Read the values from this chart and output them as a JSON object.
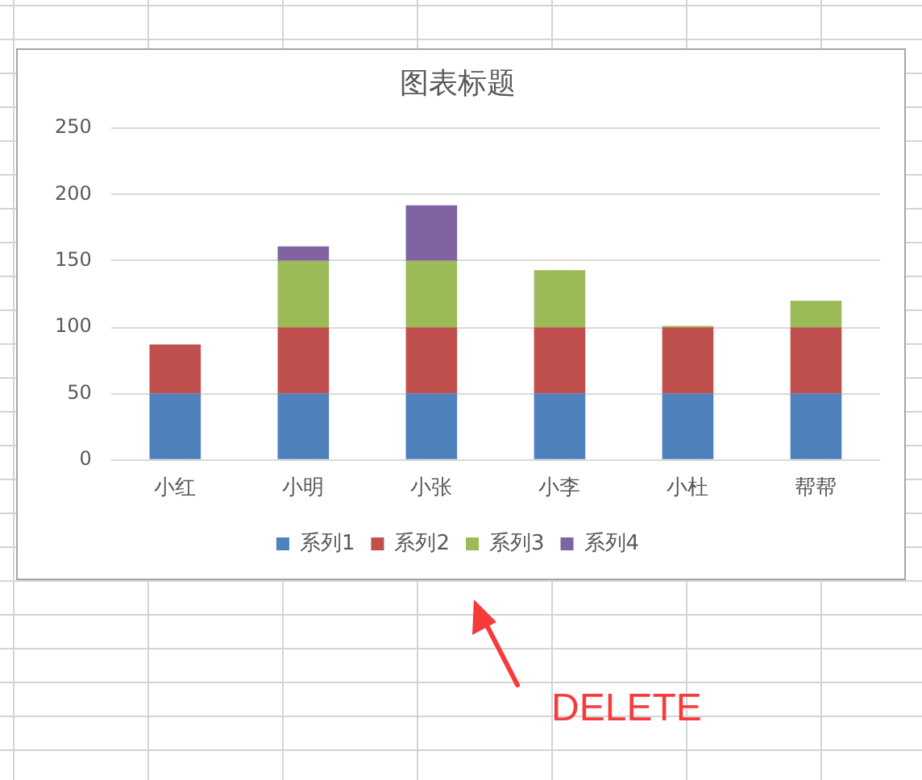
{
  "chart_data": {
    "type": "bar",
    "title": "图表标题",
    "categories": [
      "小红",
      "小明",
      "小张",
      "小李",
      "小杜",
      "帮帮"
    ],
    "stacked": true,
    "series": [
      {
        "name": "系列1",
        "color": "#4f81bd",
        "values": [
          50,
          50,
          50,
          50,
          50,
          50
        ]
      },
      {
        "name": "系列2",
        "color": "#c0504d",
        "values": [
          37,
          50,
          50,
          50,
          50,
          50
        ]
      },
      {
        "name": "系列3",
        "color": "#9bbb59",
        "values": [
          null,
          50,
          50,
          43,
          1,
          20
        ]
      },
      {
        "name": "系列4",
        "color": "#8064a2",
        "values": [
          null,
          11,
          42,
          null,
          null,
          null
        ]
      }
    ],
    "ylim": [
      0,
      250
    ],
    "yticks": [
      0,
      50,
      100,
      150,
      200,
      250
    ],
    "grid": "y",
    "legend": "bottom",
    "annotations": [
      "DELETE"
    ]
  }
}
